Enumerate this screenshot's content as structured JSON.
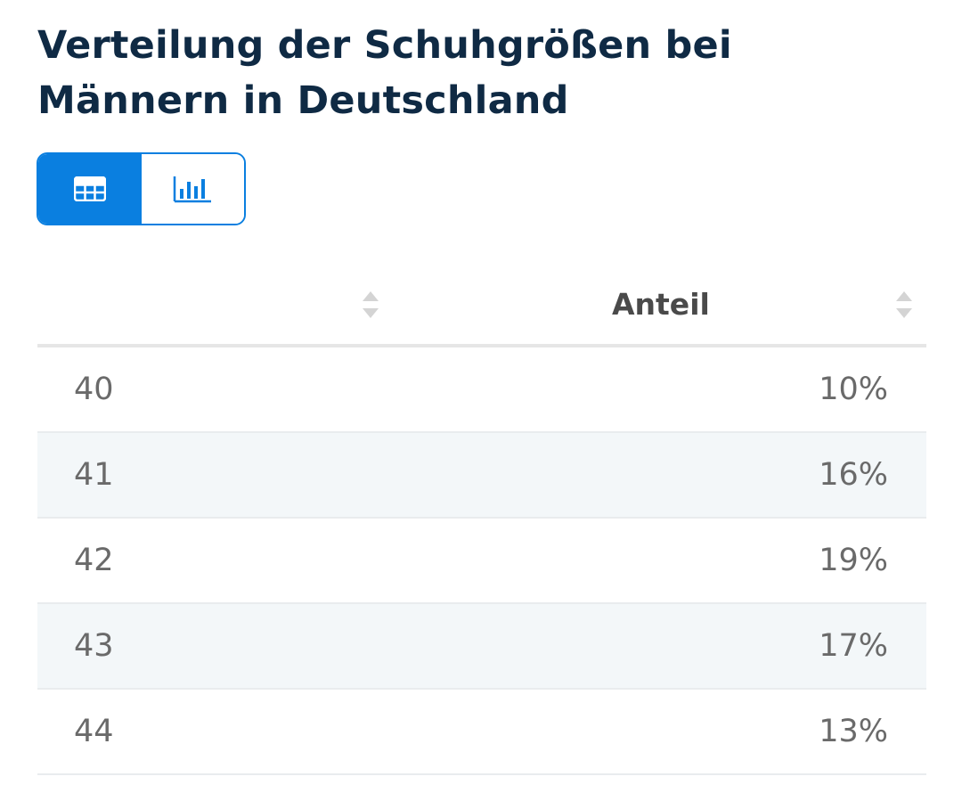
{
  "title": "Verteilung der Schuhgrößen bei Männern in Deutschland",
  "view_toggle": {
    "table_icon": "table-grid-icon",
    "chart_icon": "bar-chart-icon",
    "active": "table",
    "accent_color": "#0a7fe0"
  },
  "table": {
    "columns": [
      "",
      "Anteil"
    ],
    "rows": [
      {
        "size": "40",
        "share": "10%"
      },
      {
        "size": "41",
        "share": "16%"
      },
      {
        "size": "42",
        "share": "19%"
      },
      {
        "size": "43",
        "share": "17%"
      },
      {
        "size": "44",
        "share": "13%"
      }
    ]
  }
}
